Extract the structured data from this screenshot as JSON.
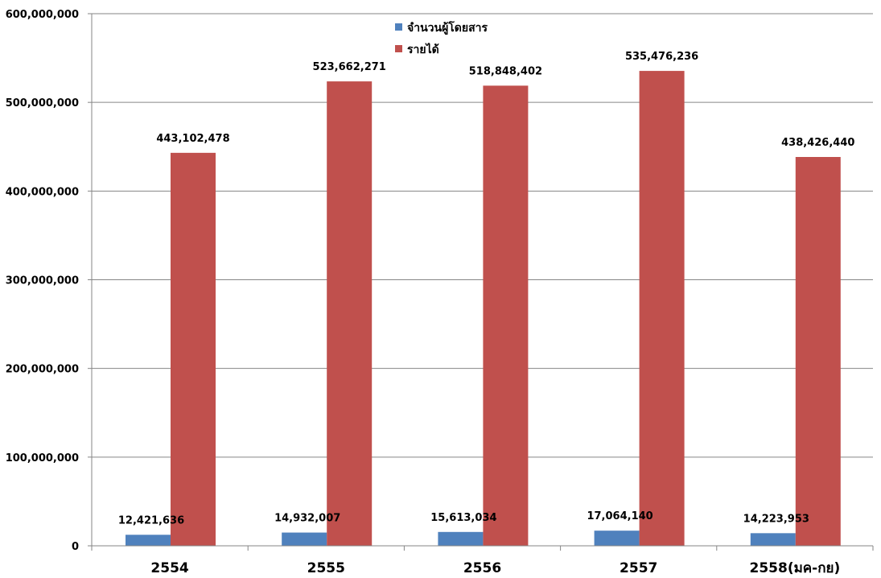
{
  "chart_data": {
    "type": "bar",
    "categories": [
      "2554",
      "2555",
      "2556",
      "2557",
      "2558(มค-กย)"
    ],
    "series": [
      {
        "name": "จำนวนผู้โดยสาร",
        "values": [
          12421636,
          14932007,
          15613034,
          17064140,
          14223953
        ],
        "color": "#4f81bd",
        "labels": [
          "12,421,636",
          "14,932,007",
          "15,613,034",
          "17,064,140",
          "14,223,953"
        ]
      },
      {
        "name": "รายได้",
        "values": [
          443102478,
          523662271,
          518848402,
          535476236,
          438426440
        ],
        "color": "#c0504d",
        "labels": [
          "443,102,478",
          "523,662,271",
          "518,848,402",
          "535,476,236",
          "438,426,440"
        ]
      }
    ],
    "ylim": [
      0,
      600000000
    ],
    "yticks": [
      0,
      100000000,
      200000000,
      300000000,
      400000000,
      500000000,
      600000000
    ],
    "ytick_labels": [
      "0",
      "100,000,000",
      "200,000,000",
      "300,000,000",
      "400,000,000",
      "500,000,000",
      "600,000,000"
    ],
    "grid": true,
    "legend": "top-center"
  }
}
